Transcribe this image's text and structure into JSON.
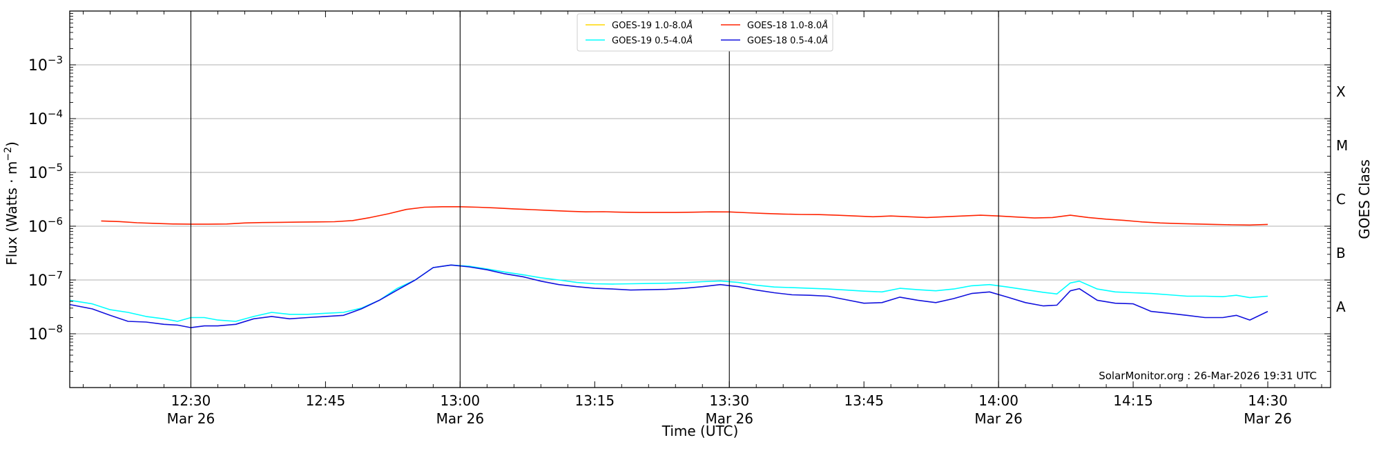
{
  "chart_data": {
    "type": "line",
    "xlabel": "Time (UTC)",
    "ylabel_main": "Flux (Watts · m",
    "ylabel_sup": "−2",
    "ylabel_close": ")",
    "right_label": "GOES Class",
    "watermark": "SolarMonitor.org : 26-Mar-2026 19:31 UTC",
    "y_scale": "log",
    "ylim": [
      1e-09,
      0.01
    ],
    "x_range_minutes": [
      -13.5,
      127
    ],
    "x_reference": "12:30 Mar 26",
    "x_ticks": [
      {
        "t": 0,
        "label": "12:30",
        "sub": "Mar 26"
      },
      {
        "t": 15,
        "label": "12:45",
        "sub": ""
      },
      {
        "t": 30,
        "label": "13:00",
        "sub": "Mar 26"
      },
      {
        "t": 45,
        "label": "13:15",
        "sub": ""
      },
      {
        "t": 60,
        "label": "13:30",
        "sub": "Mar 26"
      },
      {
        "t": 75,
        "label": "13:45",
        "sub": ""
      },
      {
        "t": 90,
        "label": "14:00",
        "sub": "Mar 26"
      },
      {
        "t": 105,
        "label": "14:15",
        "sub": ""
      },
      {
        "t": 120,
        "label": "14:30",
        "sub": "Mar 26"
      }
    ],
    "y_ticks": [
      {
        "exp": -3,
        "label": "10",
        "sup": "−3"
      },
      {
        "exp": -4,
        "label": "10",
        "sup": "−4"
      },
      {
        "exp": -5,
        "label": "10",
        "sup": "−5"
      },
      {
        "exp": -6,
        "label": "10",
        "sup": "−6"
      },
      {
        "exp": -7,
        "label": "10",
        "sup": "−7"
      },
      {
        "exp": -8,
        "label": "10",
        "sup": "−8"
      }
    ],
    "goes_classes": [
      {
        "label": "X",
        "exp": -3.5
      },
      {
        "label": "M",
        "exp": -4.5
      },
      {
        "label": "C",
        "exp": -5.5
      },
      {
        "label": "B",
        "exp": -6.5
      },
      {
        "label": "A",
        "exp": -7.5
      }
    ],
    "vertical_markers": [
      0,
      30,
      60,
      90
    ],
    "grid_y": true,
    "legend_position": "top-center",
    "series": [
      {
        "name": "GOES-19 1.0-8.0",
        "unit": "Å",
        "color": "#ffd700",
        "data": []
      },
      {
        "name": "GOES-18 1.0-8.0",
        "unit": "Å",
        "color": "#ff2200",
        "data": [
          [
            -10,
            1.25e-06
          ],
          [
            -8,
            1.22e-06
          ],
          [
            -6,
            1.16e-06
          ],
          [
            -4,
            1.13e-06
          ],
          [
            -2,
            1.1e-06
          ],
          [
            0,
            1.09e-06
          ],
          [
            2,
            1.09e-06
          ],
          [
            4,
            1.1e-06
          ],
          [
            6,
            1.15e-06
          ],
          [
            8,
            1.17e-06
          ],
          [
            10,
            1.18e-06
          ],
          [
            12,
            1.19e-06
          ],
          [
            14,
            1.2e-06
          ],
          [
            16,
            1.21e-06
          ],
          [
            18,
            1.27e-06
          ],
          [
            20,
            1.45e-06
          ],
          [
            22,
            1.7e-06
          ],
          [
            24,
            2.05e-06
          ],
          [
            26,
            2.25e-06
          ],
          [
            28,
            2.3e-06
          ],
          [
            30,
            2.3e-06
          ],
          [
            32,
            2.25e-06
          ],
          [
            34,
            2.18e-06
          ],
          [
            36,
            2.1e-06
          ],
          [
            38,
            2.03e-06
          ],
          [
            40,
            1.96e-06
          ],
          [
            42,
            1.9e-06
          ],
          [
            44,
            1.85e-06
          ],
          [
            46,
            1.86e-06
          ],
          [
            48,
            1.82e-06
          ],
          [
            50,
            1.8e-06
          ],
          [
            52,
            1.8e-06
          ],
          [
            54,
            1.8e-06
          ],
          [
            56,
            1.82e-06
          ],
          [
            58,
            1.85e-06
          ],
          [
            60,
            1.84e-06
          ],
          [
            62,
            1.78e-06
          ],
          [
            64,
            1.72e-06
          ],
          [
            66,
            1.68e-06
          ],
          [
            68,
            1.65e-06
          ],
          [
            70,
            1.64e-06
          ],
          [
            72,
            1.6e-06
          ],
          [
            74,
            1.55e-06
          ],
          [
            76,
            1.5e-06
          ],
          [
            78,
            1.55e-06
          ],
          [
            80,
            1.5e-06
          ],
          [
            82,
            1.45e-06
          ],
          [
            84,
            1.5e-06
          ],
          [
            86,
            1.55e-06
          ],
          [
            88,
            1.6e-06
          ],
          [
            90,
            1.55e-06
          ],
          [
            92,
            1.48e-06
          ],
          [
            94,
            1.42e-06
          ],
          [
            96,
            1.45e-06
          ],
          [
            98,
            1.6e-06
          ],
          [
            100,
            1.45e-06
          ],
          [
            102,
            1.35e-06
          ],
          [
            104,
            1.28e-06
          ],
          [
            106,
            1.2e-06
          ],
          [
            108,
            1.15e-06
          ],
          [
            110,
            1.12e-06
          ],
          [
            112,
            1.1e-06
          ],
          [
            114,
            1.08e-06
          ],
          [
            116,
            1.06e-06
          ],
          [
            118,
            1.05e-06
          ],
          [
            120,
            1.08e-06
          ]
        ]
      },
      {
        "name": "GOES-19 0.5-4.0",
        "unit": "Å",
        "color": "#00ffff",
        "data": [
          [
            -13.5,
            4.2e-08
          ],
          [
            -11,
            3.6e-08
          ],
          [
            -9,
            2.8e-08
          ],
          [
            -7,
            2.5e-08
          ],
          [
            -5,
            2.1e-08
          ],
          [
            -3,
            1.9e-08
          ],
          [
            -1.5,
            1.7e-08
          ],
          [
            0,
            2e-08
          ],
          [
            1.5,
            2e-08
          ],
          [
            3,
            1.8e-08
          ],
          [
            5,
            1.7e-08
          ],
          [
            7,
            2.1e-08
          ],
          [
            9,
            2.5e-08
          ],
          [
            11,
            2.3e-08
          ],
          [
            13,
            2.3e-08
          ],
          [
            15,
            2.4e-08
          ],
          [
            17,
            2.5e-08
          ],
          [
            19,
            3e-08
          ],
          [
            21,
            4.2e-08
          ],
          [
            23,
            7e-08
          ],
          [
            25,
            1e-07
          ],
          [
            27,
            1.7e-07
          ],
          [
            29,
            1.9e-07
          ],
          [
            31,
            1.8e-07
          ],
          [
            33,
            1.6e-07
          ],
          [
            35,
            1.4e-07
          ],
          [
            37,
            1.25e-07
          ],
          [
            39,
            1.1e-07
          ],
          [
            41,
            1e-07
          ],
          [
            43,
            9e-08
          ],
          [
            45,
            8.5e-08
          ],
          [
            47,
            8.4e-08
          ],
          [
            49,
            8.5e-08
          ],
          [
            51,
            8.6e-08
          ],
          [
            53,
            8.7e-08
          ],
          [
            55,
            8.9e-08
          ],
          [
            57,
            9.3e-08
          ],
          [
            59,
            9.6e-08
          ],
          [
            61,
            9e-08
          ],
          [
            63,
            8e-08
          ],
          [
            65,
            7.4e-08
          ],
          [
            67,
            7.2e-08
          ],
          [
            69,
            7e-08
          ],
          [
            71,
            6.8e-08
          ],
          [
            73,
            6.5e-08
          ],
          [
            75,
            6.2e-08
          ],
          [
            77,
            6e-08
          ],
          [
            79,
            7e-08
          ],
          [
            81,
            6.6e-08
          ],
          [
            83,
            6.3e-08
          ],
          [
            85,
            6.8e-08
          ],
          [
            87,
            7.8e-08
          ],
          [
            89,
            8.2e-08
          ],
          [
            91,
            7.4e-08
          ],
          [
            93,
            6.6e-08
          ],
          [
            95,
            5.9e-08
          ],
          [
            96.5,
            5.5e-08
          ],
          [
            98,
            8.8e-08
          ],
          [
            99,
            9.5e-08
          ],
          [
            101,
            6.8e-08
          ],
          [
            103,
            6e-08
          ],
          [
            105,
            5.8e-08
          ],
          [
            107,
            5.6e-08
          ],
          [
            109,
            5.3e-08
          ],
          [
            111,
            5e-08
          ],
          [
            113,
            5e-08
          ],
          [
            115,
            4.9e-08
          ],
          [
            116.5,
            5.2e-08
          ],
          [
            118,
            4.7e-08
          ],
          [
            120,
            5e-08
          ]
        ]
      },
      {
        "name": "GOES-18 0.5-4.0",
        "unit": "Å",
        "color": "#1010dd",
        "data": [
          [
            -13.5,
            3.5e-08
          ],
          [
            -11,
            2.9e-08
          ],
          [
            -9,
            2.2e-08
          ],
          [
            -7,
            1.7e-08
          ],
          [
            -5,
            1.65e-08
          ],
          [
            -3,
            1.5e-08
          ],
          [
            -1.5,
            1.45e-08
          ],
          [
            0,
            1.3e-08
          ],
          [
            1.5,
            1.4e-08
          ],
          [
            3,
            1.4e-08
          ],
          [
            5,
            1.5e-08
          ],
          [
            7,
            1.9e-08
          ],
          [
            9,
            2.1e-08
          ],
          [
            11,
            1.9e-08
          ],
          [
            13,
            2e-08
          ],
          [
            15,
            2.1e-08
          ],
          [
            17,
            2.2e-08
          ],
          [
            19,
            2.9e-08
          ],
          [
            21,
            4.2e-08
          ],
          [
            23,
            6.5e-08
          ],
          [
            25,
            1e-07
          ],
          [
            27,
            1.7e-07
          ],
          [
            29,
            1.9e-07
          ],
          [
            31,
            1.75e-07
          ],
          [
            33,
            1.55e-07
          ],
          [
            35,
            1.3e-07
          ],
          [
            37,
            1.15e-07
          ],
          [
            39,
            9.5e-08
          ],
          [
            41,
            8.2e-08
          ],
          [
            43,
            7.5e-08
          ],
          [
            45,
            7e-08
          ],
          [
            47,
            6.8e-08
          ],
          [
            49,
            6.5e-08
          ],
          [
            51,
            6.6e-08
          ],
          [
            53,
            6.7e-08
          ],
          [
            55,
            7e-08
          ],
          [
            57,
            7.5e-08
          ],
          [
            59,
            8.2e-08
          ],
          [
            61,
            7.5e-08
          ],
          [
            63,
            6.5e-08
          ],
          [
            65,
            5.8e-08
          ],
          [
            67,
            5.3e-08
          ],
          [
            69,
            5.2e-08
          ],
          [
            71,
            5e-08
          ],
          [
            73,
            4.3e-08
          ],
          [
            75,
            3.7e-08
          ],
          [
            77,
            3.8e-08
          ],
          [
            79,
            4.8e-08
          ],
          [
            81,
            4.2e-08
          ],
          [
            83,
            3.8e-08
          ],
          [
            85,
            4.5e-08
          ],
          [
            87,
            5.6e-08
          ],
          [
            89,
            6e-08
          ],
          [
            91,
            4.8e-08
          ],
          [
            93,
            3.8e-08
          ],
          [
            95,
            3.3e-08
          ],
          [
            96.5,
            3.4e-08
          ],
          [
            98,
            6.3e-08
          ],
          [
            99,
            6.9e-08
          ],
          [
            101,
            4.2e-08
          ],
          [
            103,
            3.7e-08
          ],
          [
            105,
            3.6e-08
          ],
          [
            107,
            2.6e-08
          ],
          [
            109,
            2.4e-08
          ],
          [
            111,
            2.2e-08
          ],
          [
            113,
            2e-08
          ],
          [
            115,
            2e-08
          ],
          [
            116.5,
            2.2e-08
          ],
          [
            118,
            1.8e-08
          ],
          [
            120,
            2.6e-08
          ]
        ]
      }
    ]
  }
}
